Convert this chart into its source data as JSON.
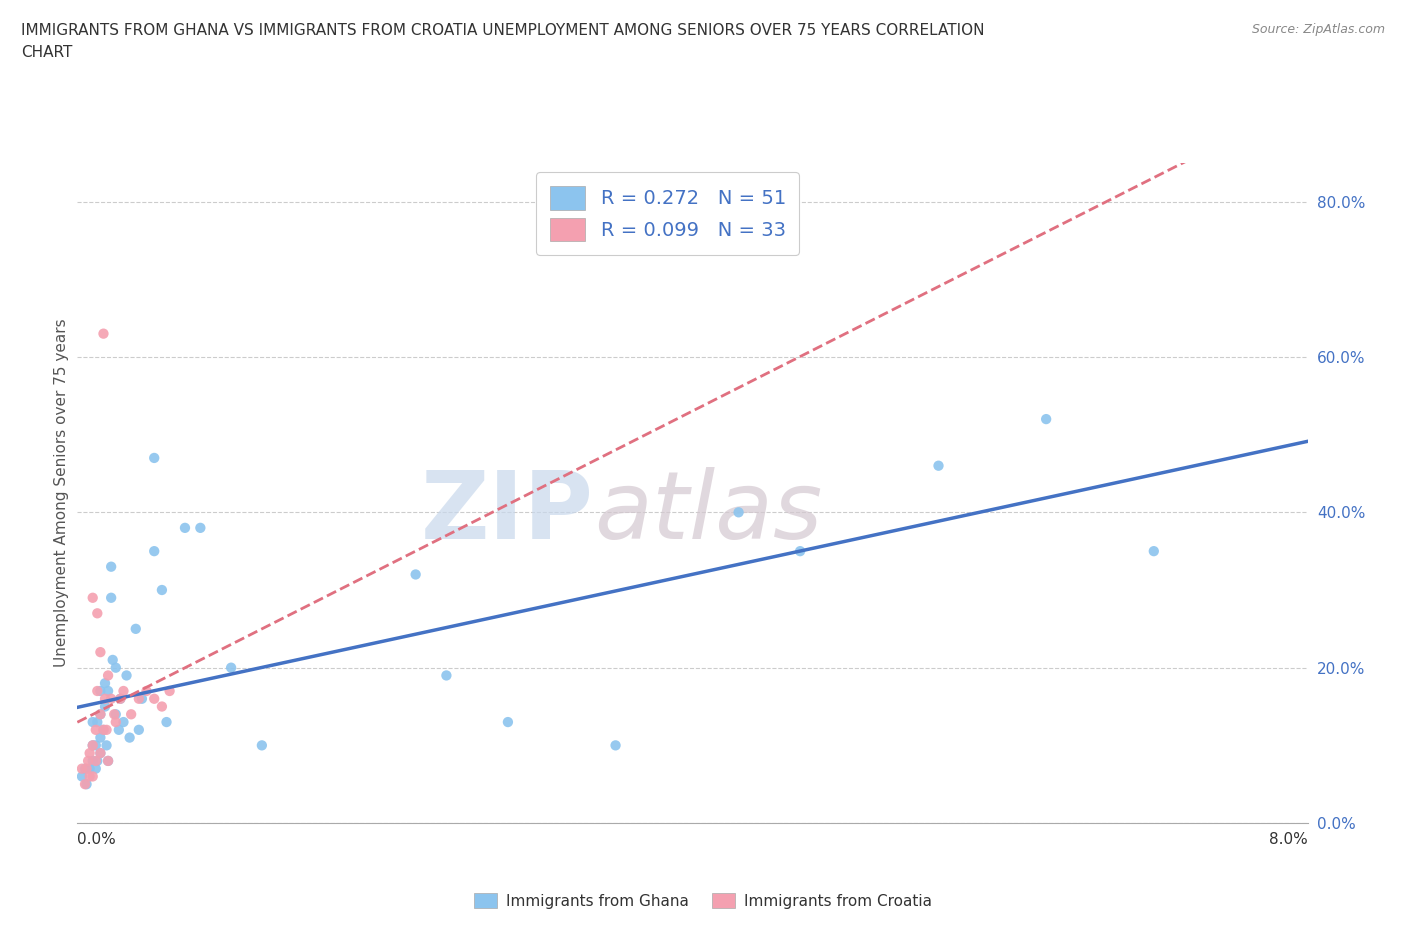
{
  "title_line1": "IMMIGRANTS FROM GHANA VS IMMIGRANTS FROM CROATIA UNEMPLOYMENT AMONG SENIORS OVER 75 YEARS CORRELATION",
  "title_line2": "CHART",
  "source": "Source: ZipAtlas.com",
  "ylabel": "Unemployment Among Seniors over 75 years",
  "ghana_R": 0.272,
  "ghana_N": 51,
  "croatia_R": 0.099,
  "croatia_N": 33,
  "ghana_color": "#8CC4EE",
  "croatia_color": "#F4A0B0",
  "ghana_line_color": "#4472C4",
  "croatia_line_color": "#E07080",
  "xlim": [
    0.0,
    0.08
  ],
  "ylim": [
    0.0,
    0.85
  ],
  "yticks": [
    0.0,
    0.2,
    0.4,
    0.6,
    0.8
  ],
  "ytick_labels": [
    "0.0%",
    "20.0%",
    "40.0%",
    "60.0%",
    "80.0%"
  ],
  "ghana_x": [
    0.0003,
    0.0005,
    0.0006,
    0.0008,
    0.001,
    0.001,
    0.001,
    0.0012,
    0.0012,
    0.0013,
    0.0013,
    0.0015,
    0.0015,
    0.0015,
    0.0015,
    0.0017,
    0.0018,
    0.0018,
    0.0019,
    0.002,
    0.002,
    0.0022,
    0.0022,
    0.0023,
    0.0025,
    0.0025,
    0.0027,
    0.0028,
    0.003,
    0.0032,
    0.0034,
    0.0038,
    0.004,
    0.0042,
    0.005,
    0.005,
    0.0055,
    0.0058,
    0.007,
    0.008,
    0.01,
    0.012,
    0.022,
    0.024,
    0.028,
    0.035,
    0.043,
    0.047,
    0.056,
    0.063,
    0.07
  ],
  "ghana_y": [
    0.06,
    0.07,
    0.05,
    0.07,
    0.08,
    0.1,
    0.13,
    0.07,
    0.1,
    0.08,
    0.13,
    0.09,
    0.11,
    0.14,
    0.17,
    0.12,
    0.15,
    0.18,
    0.1,
    0.08,
    0.17,
    0.29,
    0.33,
    0.21,
    0.14,
    0.2,
    0.12,
    0.16,
    0.13,
    0.19,
    0.11,
    0.25,
    0.12,
    0.16,
    0.35,
    0.47,
    0.3,
    0.13,
    0.38,
    0.38,
    0.2,
    0.1,
    0.32,
    0.19,
    0.13,
    0.1,
    0.4,
    0.35,
    0.46,
    0.52,
    0.35
  ],
  "croatia_x": [
    0.0003,
    0.0005,
    0.0006,
    0.0007,
    0.0008,
    0.0008,
    0.001,
    0.001,
    0.001,
    0.0012,
    0.0012,
    0.0013,
    0.0013,
    0.0015,
    0.0015,
    0.0015,
    0.0017,
    0.0017,
    0.0018,
    0.0019,
    0.002,
    0.002,
    0.0022,
    0.0024,
    0.0025,
    0.0028,
    0.003,
    0.0035,
    0.004,
    0.0045,
    0.005,
    0.0055,
    0.006
  ],
  "croatia_y": [
    0.07,
    0.05,
    0.07,
    0.08,
    0.06,
    0.09,
    0.06,
    0.1,
    0.29,
    0.08,
    0.12,
    0.27,
    0.17,
    0.09,
    0.14,
    0.22,
    0.12,
    0.63,
    0.16,
    0.12,
    0.08,
    0.19,
    0.16,
    0.14,
    0.13,
    0.16,
    0.17,
    0.14,
    0.16,
    0.17,
    0.16,
    0.15,
    0.17
  ],
  "watermark_zip": "ZIP",
  "watermark_atlas": "atlas",
  "background_color": "#FFFFFF"
}
